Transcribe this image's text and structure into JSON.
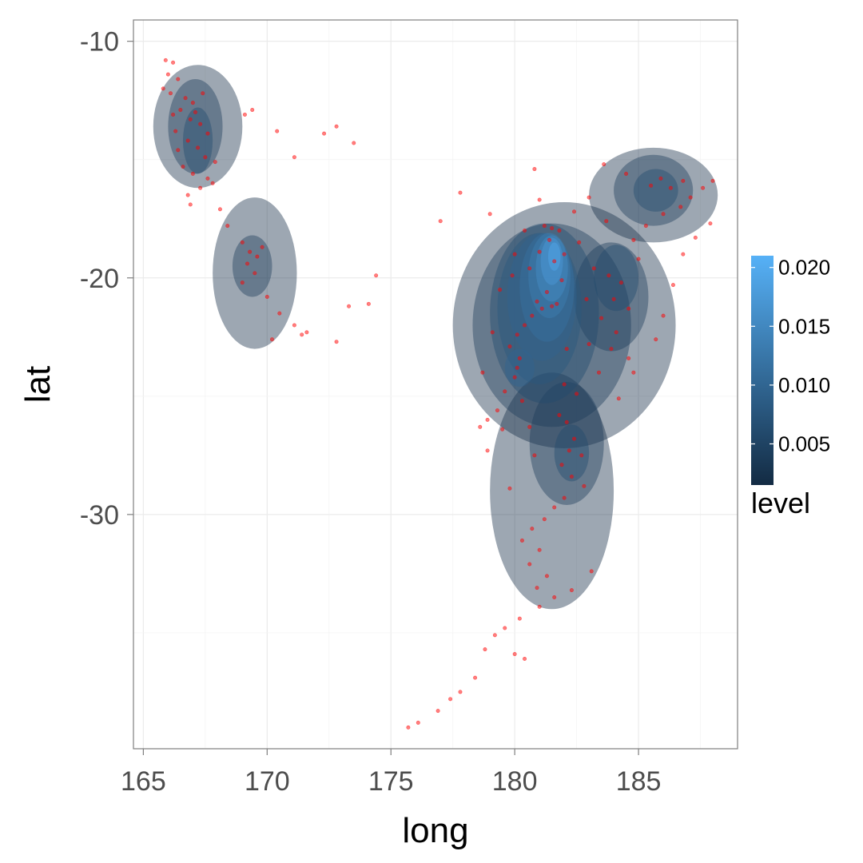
{
  "chart_data": {
    "type": "scatter",
    "subtype": "density-2d-filled-with-points",
    "title": "",
    "xlabel": "long",
    "ylabel": "lat",
    "xlim": [
      164.6,
      189.0
    ],
    "ylim": [
      -39.9,
      -9.1
    ],
    "x_ticks": [
      165,
      170,
      175,
      180,
      185
    ],
    "y_ticks": [
      -10,
      -20,
      -30
    ],
    "x_tick_labels": [
      "165",
      "170",
      "175",
      "180",
      "185"
    ],
    "y_tick_labels": [
      "-10",
      "-20",
      "-30"
    ],
    "grid": true,
    "point_color": "#ff0000",
    "legend": {
      "title": "level",
      "position": "right",
      "ticks": [
        0.005,
        0.01,
        0.015,
        0.02
      ],
      "tick_labels": [
        "0.005",
        "0.010",
        "0.015",
        "0.020"
      ],
      "range": [
        0.0015,
        0.021
      ],
      "color_low": "#132b43",
      "color_high": "#56b1f7"
    },
    "density_regions": [
      {
        "level": 0.002,
        "center": [
          167.2,
          -13.6
        ],
        "radius": [
          1.8,
          2.6
        ]
      },
      {
        "level": 0.002,
        "center": [
          169.5,
          -19.8
        ],
        "radius": [
          1.7,
          3.2
        ]
      },
      {
        "level": 0.002,
        "center": [
          182.0,
          -22.0
        ],
        "radius": [
          4.5,
          5.2
        ]
      },
      {
        "level": 0.002,
        "center": [
          185.6,
          -16.5
        ],
        "radius": [
          2.6,
          2.0
        ]
      },
      {
        "level": 0.002,
        "center": [
          181.5,
          -29.0
        ],
        "radius": [
          2.5,
          5.0
        ]
      },
      {
        "level": 0.004,
        "center": [
          167.1,
          -13.6
        ],
        "radius": [
          1.1,
          2.0
        ]
      },
      {
        "level": 0.004,
        "center": [
          169.4,
          -19.5
        ],
        "radius": [
          0.8,
          1.3
        ]
      },
      {
        "level": 0.004,
        "center": [
          181.5,
          -22.0
        ],
        "radius": [
          3.2,
          4.3
        ]
      },
      {
        "level": 0.004,
        "center": [
          185.6,
          -16.3
        ],
        "radius": [
          1.6,
          1.5
        ]
      },
      {
        "level": 0.004,
        "center": [
          182.1,
          -27.0
        ],
        "radius": [
          1.5,
          2.6
        ]
      },
      {
        "level": 0.004,
        "center": [
          183.9,
          -20.8
        ],
        "radius": [
          1.5,
          2.3
        ]
      },
      {
        "level": 0.006,
        "center": [
          167.2,
          -14.2
        ],
        "radius": [
          0.6,
          1.4
        ]
      },
      {
        "level": 0.006,
        "center": [
          181.2,
          -21.5
        ],
        "radius": [
          2.2,
          3.8
        ]
      },
      {
        "level": 0.006,
        "center": [
          182.3,
          -27.4
        ],
        "radius": [
          0.7,
          1.2
        ]
      },
      {
        "level": 0.006,
        "center": [
          185.7,
          -16.3
        ],
        "radius": [
          0.9,
          0.9
        ]
      },
      {
        "level": 0.006,
        "center": [
          184.1,
          -20.0
        ],
        "radius": [
          0.9,
          1.4
        ]
      },
      {
        "level": 0.008,
        "center": [
          181.0,
          -21.3
        ],
        "radius": [
          1.7,
          3.2
        ]
      },
      {
        "level": 0.01,
        "center": [
          181.1,
          -20.8
        ],
        "radius": [
          1.4,
          2.7
        ]
      },
      {
        "level": 0.01,
        "center": [
          180.2,
          -23.8
        ],
        "radius": [
          0.6,
          0.8
        ]
      },
      {
        "level": 0.012,
        "center": [
          181.3,
          -20.4
        ],
        "radius": [
          1.1,
          2.3
        ]
      },
      {
        "level": 0.014,
        "center": [
          181.4,
          -19.9
        ],
        "radius": [
          0.85,
          1.8
        ]
      },
      {
        "level": 0.016,
        "center": [
          181.5,
          -19.6
        ],
        "radius": [
          0.65,
          1.4
        ]
      },
      {
        "level": 0.018,
        "center": [
          181.5,
          -19.3
        ],
        "radius": [
          0.45,
          1.0
        ]
      },
      {
        "level": 0.02,
        "center": [
          181.6,
          -19.1
        ],
        "radius": [
          0.25,
          0.6
        ]
      }
    ],
    "points": [
      [
        165.9,
        -10.8
      ],
      [
        166.2,
        -10.9
      ],
      [
        166.0,
        -11.4
      ],
      [
        166.4,
        -11.6
      ],
      [
        165.8,
        -12.0
      ],
      [
        166.1,
        -12.2
      ],
      [
        166.7,
        -12.4
      ],
      [
        167.0,
        -12.6
      ],
      [
        166.5,
        -12.9
      ],
      [
        166.9,
        -13.3
      ],
      [
        167.3,
        -13.5
      ],
      [
        166.3,
        -13.8
      ],
      [
        166.8,
        -14.2
      ],
      [
        167.2,
        -14.5
      ],
      [
        167.5,
        -14.9
      ],
      [
        166.6,
        -15.3
      ],
      [
        167.0,
        -15.6
      ],
      [
        167.6,
        -15.8
      ],
      [
        167.3,
        -16.2
      ],
      [
        166.8,
        -16.5
      ],
      [
        167.8,
        -16.0
      ],
      [
        167.1,
        -13.0
      ],
      [
        166.4,
        -14.6
      ],
      [
        167.4,
        -12.2
      ],
      [
        166.2,
        -13.1
      ],
      [
        167.9,
        -15.1
      ],
      [
        166.9,
        -16.9
      ],
      [
        167.6,
        -13.9
      ],
      [
        168.1,
        -17.1
      ],
      [
        168.4,
        -17.8
      ],
      [
        169.0,
        -18.5
      ],
      [
        169.3,
        -18.9
      ],
      [
        169.6,
        -19.1
      ],
      [
        169.2,
        -19.4
      ],
      [
        169.8,
        -18.7
      ],
      [
        169.5,
        -19.8
      ],
      [
        169.0,
        -20.2
      ],
      [
        170.0,
        -20.8
      ],
      [
        170.5,
        -21.5
      ],
      [
        171.1,
        -22.0
      ],
      [
        171.4,
        -22.4
      ],
      [
        171.6,
        -22.3
      ],
      [
        170.2,
        -22.6
      ],
      [
        172.8,
        -22.7
      ],
      [
        173.3,
        -21.2
      ],
      [
        174.1,
        -21.1
      ],
      [
        174.4,
        -19.9
      ],
      [
        169.1,
        -13.1
      ],
      [
        169.4,
        -12.9
      ],
      [
        170.4,
        -13.8
      ],
      [
        171.1,
        -14.9
      ],
      [
        172.3,
        -13.9
      ],
      [
        172.8,
        -13.6
      ],
      [
        173.5,
        -14.3
      ],
      [
        177.0,
        -17.6
      ],
      [
        177.8,
        -16.4
      ],
      [
        179.9,
        -19.9
      ],
      [
        180.8,
        -15.4
      ],
      [
        181.2,
        -17.8
      ],
      [
        181.5,
        -17.9
      ],
      [
        181.8,
        -18.0
      ],
      [
        181.4,
        -18.4
      ],
      [
        181.0,
        -18.9
      ],
      [
        181.6,
        -19.3
      ],
      [
        180.6,
        -19.6
      ],
      [
        181.9,
        -20.1
      ],
      [
        181.3,
        -20.6
      ],
      [
        180.9,
        -21.0
      ],
      [
        181.5,
        -21.2
      ],
      [
        180.7,
        -21.6
      ],
      [
        180.4,
        -22.0
      ],
      [
        180.1,
        -22.4
      ],
      [
        179.8,
        -22.9
      ],
      [
        180.2,
        -23.4
      ],
      [
        180.1,
        -23.8
      ],
      [
        180.0,
        -24.2
      ],
      [
        179.6,
        -24.8
      ],
      [
        180.3,
        -25.2
      ],
      [
        179.3,
        -25.6
      ],
      [
        178.9,
        -26.0
      ],
      [
        178.6,
        -26.3
      ],
      [
        181.1,
        -21.3
      ],
      [
        181.7,
        -21.1
      ],
      [
        182.0,
        -19.0
      ],
      [
        182.6,
        -18.5
      ],
      [
        183.2,
        -19.6
      ],
      [
        183.8,
        -19.9
      ],
      [
        184.3,
        -20.2
      ],
      [
        184.0,
        -20.9
      ],
      [
        184.6,
        -21.3
      ],
      [
        183.5,
        -21.7
      ],
      [
        184.1,
        -22.3
      ],
      [
        183.9,
        -23.0
      ],
      [
        184.6,
        -23.4
      ],
      [
        183.0,
        -22.8
      ],
      [
        185.0,
        -19.2
      ],
      [
        184.8,
        -18.4
      ],
      [
        185.5,
        -16.1
      ],
      [
        185.9,
        -15.8
      ],
      [
        186.3,
        -16.2
      ],
      [
        186.8,
        -15.9
      ],
      [
        187.1,
        -16.6
      ],
      [
        187.6,
        -16.2
      ],
      [
        186.0,
        -17.3
      ],
      [
        185.3,
        -17.8
      ],
      [
        186.7,
        -17.0
      ],
      [
        187.9,
        -17.7
      ],
      [
        188.0,
        -15.9
      ],
      [
        184.5,
        -15.6
      ],
      [
        183.6,
        -15.2
      ],
      [
        183.0,
        -16.6
      ],
      [
        182.4,
        -17.2
      ],
      [
        182.0,
        -24.5
      ],
      [
        182.5,
        -24.9
      ],
      [
        182.1,
        -26.1
      ],
      [
        182.4,
        -26.8
      ],
      [
        182.2,
        -27.3
      ],
      [
        182.7,
        -27.5
      ],
      [
        181.9,
        -27.9
      ],
      [
        182.3,
        -28.4
      ],
      [
        182.8,
        -28.8
      ],
      [
        182.0,
        -29.3
      ],
      [
        181.6,
        -29.7
      ],
      [
        181.2,
        -30.2
      ],
      [
        180.7,
        -30.6
      ],
      [
        180.3,
        -31.1
      ],
      [
        181.0,
        -31.5
      ],
      [
        180.6,
        -32.1
      ],
      [
        181.3,
        -32.6
      ],
      [
        180.9,
        -33.1
      ],
      [
        181.6,
        -33.5
      ],
      [
        181.0,
        -33.9
      ],
      [
        180.2,
        -34.4
      ],
      [
        179.6,
        -34.8
      ],
      [
        179.2,
        -35.1
      ],
      [
        178.8,
        -35.7
      ],
      [
        180.0,
        -35.9
      ],
      [
        180.4,
        -36.1
      ],
      [
        178.4,
        -36.9
      ],
      [
        177.8,
        -37.5
      ],
      [
        177.4,
        -37.8
      ],
      [
        176.9,
        -38.3
      ],
      [
        176.1,
        -38.8
      ],
      [
        175.7,
        -39.0
      ],
      [
        182.3,
        -33.2
      ],
      [
        183.1,
        -32.4
      ],
      [
        179.8,
        -28.9
      ],
      [
        178.9,
        -27.3
      ],
      [
        180.6,
        -26.3
      ],
      [
        181.8,
        -25.8
      ],
      [
        184.2,
        -25.1
      ],
      [
        184.8,
        -24.0
      ],
      [
        185.7,
        -22.6
      ],
      [
        186.0,
        -21.6
      ],
      [
        186.4,
        -20.3
      ],
      [
        186.8,
        -19.0
      ],
      [
        187.3,
        -18.3
      ],
      [
        183.7,
        -17.6
      ],
      [
        181.0,
        -16.7
      ],
      [
        180.4,
        -18.0
      ],
      [
        179.0,
        -17.3
      ],
      [
        182.9,
        -20.9
      ],
      [
        183.4,
        -24.0
      ],
      [
        182.1,
        -23.0
      ],
      [
        180.8,
        -27.5
      ],
      [
        179.5,
        -26.4
      ],
      [
        178.7,
        -24.0
      ],
      [
        179.1,
        -22.3
      ],
      [
        179.4,
        -20.5
      ],
      [
        180.0,
        -19.0
      ]
    ]
  }
}
